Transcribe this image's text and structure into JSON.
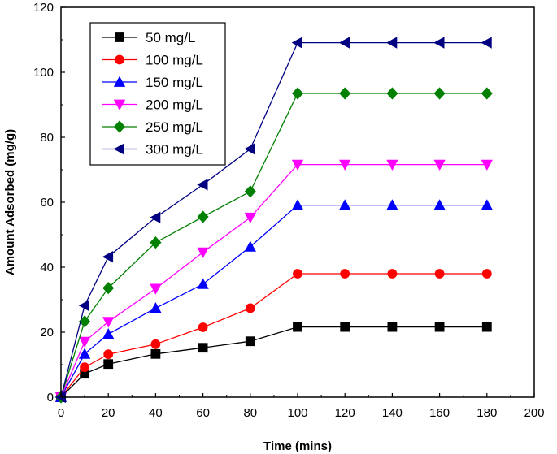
{
  "chart_data": {
    "type": "line",
    "title": "",
    "xlabel": "Time (mins)",
    "ylabel": "Amount Adsorbed (mg/g)",
    "xlim": [
      0,
      200
    ],
    "ylim": [
      0,
      120
    ],
    "xticks": [
      "0",
      "20",
      "40",
      "60",
      "80",
      "100",
      "120",
      "140",
      "160",
      "180",
      "200"
    ],
    "yticks": [
      "0",
      "20",
      "40",
      "60",
      "80",
      "100",
      "120"
    ],
    "grid": false,
    "legend_position": "top-left",
    "x": [
      0,
      10,
      20,
      40,
      60,
      80,
      100,
      120,
      140,
      160,
      180
    ],
    "series": [
      {
        "name": "50 mg/L",
        "color": "#000000",
        "marker": "square",
        "values": [
          0,
          7.2,
          10.2,
          13.3,
          15.2,
          17.2,
          21.6,
          21.6,
          21.6,
          21.6,
          21.6
        ]
      },
      {
        "name": "100 mg/L",
        "color": "#ff0000",
        "marker": "circle",
        "values": [
          0,
          9.2,
          13.2,
          16.3,
          21.5,
          27.4,
          38.0,
          38.0,
          38.0,
          38.0,
          38.0
        ]
      },
      {
        "name": "150 mg/L",
        "color": "#0000ff",
        "marker": "triangle-up",
        "values": [
          0,
          13.3,
          19.4,
          27.4,
          34.8,
          46.3,
          59.1,
          59.1,
          59.1,
          59.1,
          59.1
        ]
      },
      {
        "name": "200 mg/L",
        "color": "#ff00ff",
        "marker": "triangle-down",
        "values": [
          0,
          17.1,
          23.2,
          33.4,
          44.6,
          55.3,
          71.6,
          71.6,
          71.6,
          71.6,
          71.6
        ]
      },
      {
        "name": "250 mg/L",
        "color": "#008000",
        "marker": "diamond",
        "values": [
          0,
          23.3,
          33.6,
          47.6,
          55.5,
          63.3,
          93.5,
          93.5,
          93.5,
          93.5,
          93.5
        ]
      },
      {
        "name": "300 mg/L",
        "color": "#000080",
        "marker": "triangle-left",
        "values": [
          0,
          28.2,
          43.2,
          55.3,
          65.4,
          76.4,
          109.1,
          109.1,
          109.1,
          109.1,
          109.1
        ]
      }
    ]
  }
}
